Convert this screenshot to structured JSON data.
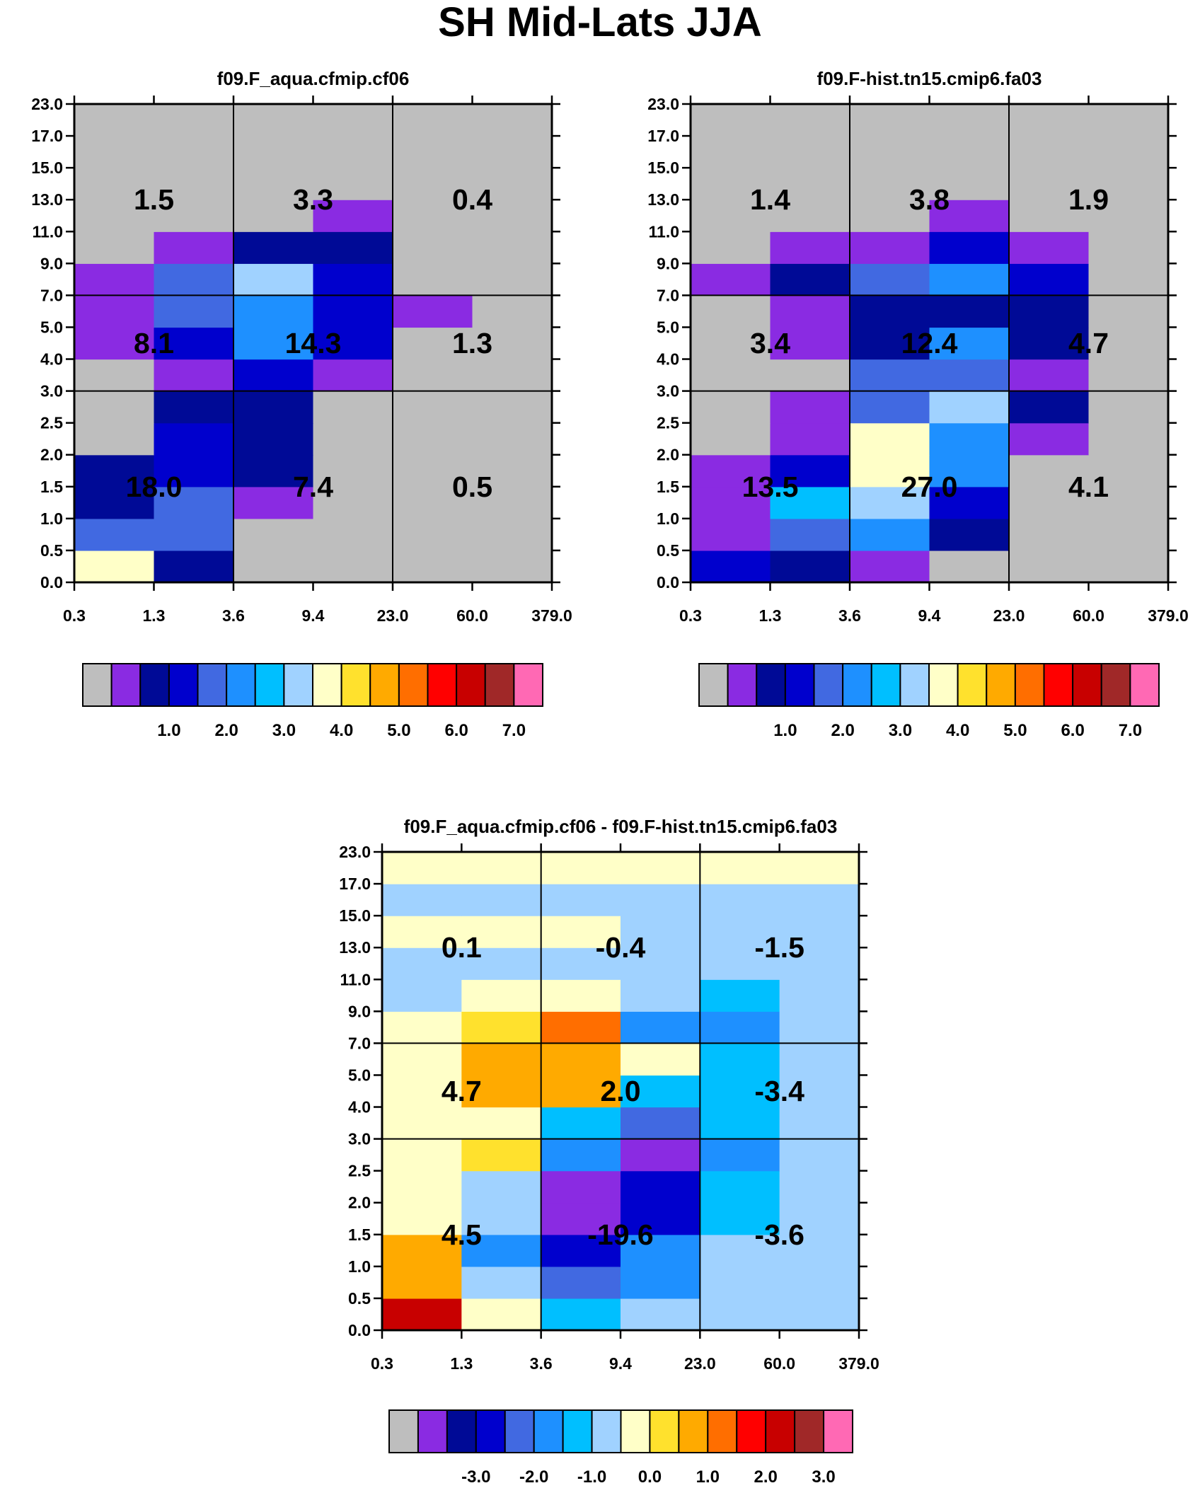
{
  "title": "SH Mid-Lats JJA",
  "palette": [
    "#bebebe",
    "#8a2be2",
    "#000a96",
    "#0000cd",
    "#4169e1",
    "#1e90ff",
    "#00bfff",
    "#a0d2ff",
    "#ffffc8",
    "#ffe12d",
    "#ffaa00",
    "#ff6e00",
    "#ff0000",
    "#c80000",
    "#a02828",
    "#ff69b4"
  ],
  "chart_data": [
    {
      "type": "heatmap",
      "title": "f09.F_aqua.cfmip.cf06",
      "x_ticks": [
        "0.3",
        "1.3",
        "3.6",
        "9.4",
        "23.0",
        "60.0",
        "379.0"
      ],
      "y_ticks": [
        "0.0",
        "0.5",
        "1.0",
        "1.5",
        "2.0",
        "2.5",
        "3.0",
        "4.0",
        "5.0",
        "7.0",
        "9.0",
        "11.0",
        "13.0",
        "15.0",
        "17.0",
        "23.0"
      ],
      "cells_color_index_bottom_to_top": [
        [
          8,
          2,
          0,
          0,
          0,
          0
        ],
        [
          4,
          4,
          0,
          0,
          0,
          0
        ],
        [
          2,
          4,
          1,
          0,
          0,
          0
        ],
        [
          2,
          3,
          2,
          0,
          0,
          0
        ],
        [
          0,
          3,
          2,
          0,
          0,
          0
        ],
        [
          0,
          2,
          2,
          0,
          0,
          0
        ],
        [
          0,
          1,
          3,
          1,
          0,
          0
        ],
        [
          1,
          3,
          5,
          3,
          0,
          0
        ],
        [
          1,
          4,
          5,
          3,
          1,
          0
        ],
        [
          1,
          4,
          7,
          3,
          0,
          0
        ],
        [
          0,
          1,
          2,
          2,
          0,
          0
        ],
        [
          0,
          0,
          0,
          1,
          0,
          0
        ],
        [
          0,
          0,
          0,
          0,
          0,
          0
        ],
        [
          0,
          0,
          0,
          0,
          0,
          0
        ],
        [
          0,
          0,
          0,
          0,
          0,
          0
        ]
      ],
      "group_values_bottom_to_top": [
        [
          "18.0",
          "7.4",
          "0.5"
        ],
        [
          "8.1",
          "14.3",
          "1.3"
        ],
        [
          "1.5",
          "3.3",
          "0.4"
        ]
      ],
      "colorbar": {
        "labels": [
          "1.0",
          "2.0",
          "3.0",
          "4.0",
          "5.0",
          "6.0",
          "7.0"
        ]
      }
    },
    {
      "type": "heatmap",
      "title": "f09.F-hist.tn15.cmip6.fa03",
      "x_ticks": [
        "0.3",
        "1.3",
        "3.6",
        "9.4",
        "23.0",
        "60.0",
        "379.0"
      ],
      "y_ticks": [
        "0.0",
        "0.5",
        "1.0",
        "1.5",
        "2.0",
        "2.5",
        "3.0",
        "4.0",
        "5.0",
        "7.0",
        "9.0",
        "11.0",
        "13.0",
        "15.0",
        "17.0",
        "23.0"
      ],
      "cells_color_index_bottom_to_top": [
        [
          3,
          2,
          1,
          0,
          0,
          0
        ],
        [
          1,
          4,
          5,
          2,
          0,
          0
        ],
        [
          1,
          6,
          7,
          3,
          0,
          0
        ],
        [
          1,
          3,
          8,
          5,
          0,
          0
        ],
        [
          0,
          1,
          8,
          5,
          1,
          0
        ],
        [
          0,
          1,
          4,
          7,
          2,
          0
        ],
        [
          0,
          0,
          4,
          4,
          1,
          0
        ],
        [
          0,
          1,
          2,
          5,
          2,
          0
        ],
        [
          0,
          1,
          2,
          2,
          2,
          0
        ],
        [
          1,
          2,
          4,
          5,
          3,
          0
        ],
        [
          0,
          1,
          1,
          3,
          1,
          0
        ],
        [
          0,
          0,
          0,
          1,
          0,
          0
        ],
        [
          0,
          0,
          0,
          0,
          0,
          0
        ],
        [
          0,
          0,
          0,
          0,
          0,
          0
        ],
        [
          0,
          0,
          0,
          0,
          0,
          0
        ]
      ],
      "group_values_bottom_to_top": [
        [
          "13.5",
          "27.0",
          "4.1"
        ],
        [
          "3.4",
          "12.4",
          "4.7"
        ],
        [
          "1.4",
          "3.8",
          "1.9"
        ]
      ],
      "colorbar": {
        "labels": [
          "1.0",
          "2.0",
          "3.0",
          "4.0",
          "5.0",
          "6.0",
          "7.0"
        ]
      }
    },
    {
      "type": "heatmap",
      "title": "f09.F_aqua.cfmip.cf06 - f09.F-hist.tn15.cmip6.fa03",
      "x_ticks": [
        "0.3",
        "1.3",
        "3.6",
        "9.4",
        "23.0",
        "60.0",
        "379.0"
      ],
      "y_ticks": [
        "0.0",
        "0.5",
        "1.0",
        "1.5",
        "2.0",
        "2.5",
        "3.0",
        "4.0",
        "5.0",
        "7.0",
        "9.0",
        "11.0",
        "13.0",
        "15.0",
        "17.0",
        "23.0"
      ],
      "cells_color_index_bottom_to_top": [
        [
          13,
          8,
          6,
          7,
          7,
          7
        ],
        [
          10,
          7,
          4,
          5,
          7,
          7
        ],
        [
          10,
          5,
          3,
          5,
          7,
          7
        ],
        [
          8,
          7,
          1,
          3,
          6,
          7
        ],
        [
          8,
          7,
          1,
          3,
          6,
          7
        ],
        [
          8,
          9,
          5,
          1,
          5,
          7
        ],
        [
          8,
          8,
          6,
          4,
          6,
          7
        ],
        [
          8,
          10,
          10,
          6,
          6,
          7
        ],
        [
          8,
          10,
          10,
          8,
          6,
          7
        ],
        [
          8,
          9,
          11,
          5,
          5,
          7
        ],
        [
          7,
          8,
          8,
          7,
          6,
          7
        ],
        [
          7,
          7,
          7,
          7,
          7,
          7
        ],
        [
          8,
          8,
          8,
          7,
          7,
          7
        ],
        [
          7,
          7,
          7,
          7,
          7,
          7
        ],
        [
          8,
          8,
          8,
          8,
          8,
          8
        ]
      ],
      "group_values_bottom_to_top": [
        [
          "4.5",
          "-19.6",
          "-3.6"
        ],
        [
          "4.7",
          "2.0",
          "-3.4"
        ],
        [
          "0.1",
          "-0.4",
          "-1.5"
        ]
      ],
      "colorbar": {
        "labels": [
          "-3.0",
          "-2.0",
          "-1.0",
          "0.0",
          "1.0",
          "2.0",
          "3.0"
        ]
      }
    }
  ]
}
